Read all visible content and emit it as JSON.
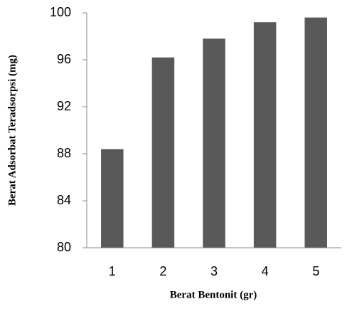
{
  "chart_data": {
    "type": "bar",
    "x_label": "Berat Bentonit (gr)",
    "y_label": "Berat Adsorbat Teradsorpsi (mg)",
    "categories": [
      "1",
      "2",
      "3",
      "4",
      "5"
    ],
    "values": [
      88.4,
      96.2,
      97.8,
      99.2,
      99.6
    ],
    "color": "#595959",
    "ylim": [
      80,
      100
    ],
    "yticks": [
      80,
      84,
      88,
      92,
      96,
      100
    ],
    "grid": false
  }
}
